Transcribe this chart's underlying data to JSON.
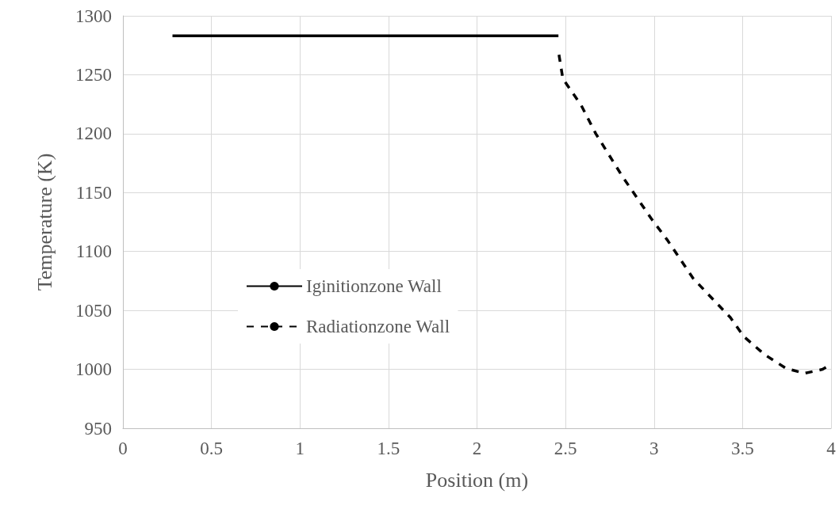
{
  "chart_data": {
    "type": "line",
    "xlabel": "Position (m)",
    "ylabel": "Temperature (K)",
    "xlim": [
      0,
      4
    ],
    "xticks": [
      0,
      0.5,
      1,
      1.5,
      2,
      2.5,
      3,
      3.5,
      4
    ],
    "ylim": [
      950,
      1300
    ],
    "yticks": [
      950,
      1000,
      1050,
      1100,
      1150,
      1200,
      1250,
      1300
    ],
    "grid": true,
    "legend": "center left",
    "marker": "none",
    "series": [
      {
        "name": "Iginitionzone Wall",
        "color": "#000000",
        "line_style": "solid",
        "x": [
          0.28,
          2.46
        ],
        "values": [
          1283,
          1283
        ]
      },
      {
        "name": "Radiationzone Wall",
        "color": "#000000",
        "line_style": "dashed",
        "x": [
          2.463,
          2.485,
          2.589,
          2.671,
          2.82,
          2.984,
          3.074,
          3.222,
          3.431,
          3.506,
          3.625,
          3.744,
          3.848,
          3.952,
          4.0
        ],
        "values": [
          1267,
          1246.6,
          1224,
          1200,
          1164,
          1128,
          1110,
          1077,
          1044,
          1028,
          1012.5,
          1001,
          996.6,
          1000,
          1004.5
        ]
      }
    ]
  }
}
